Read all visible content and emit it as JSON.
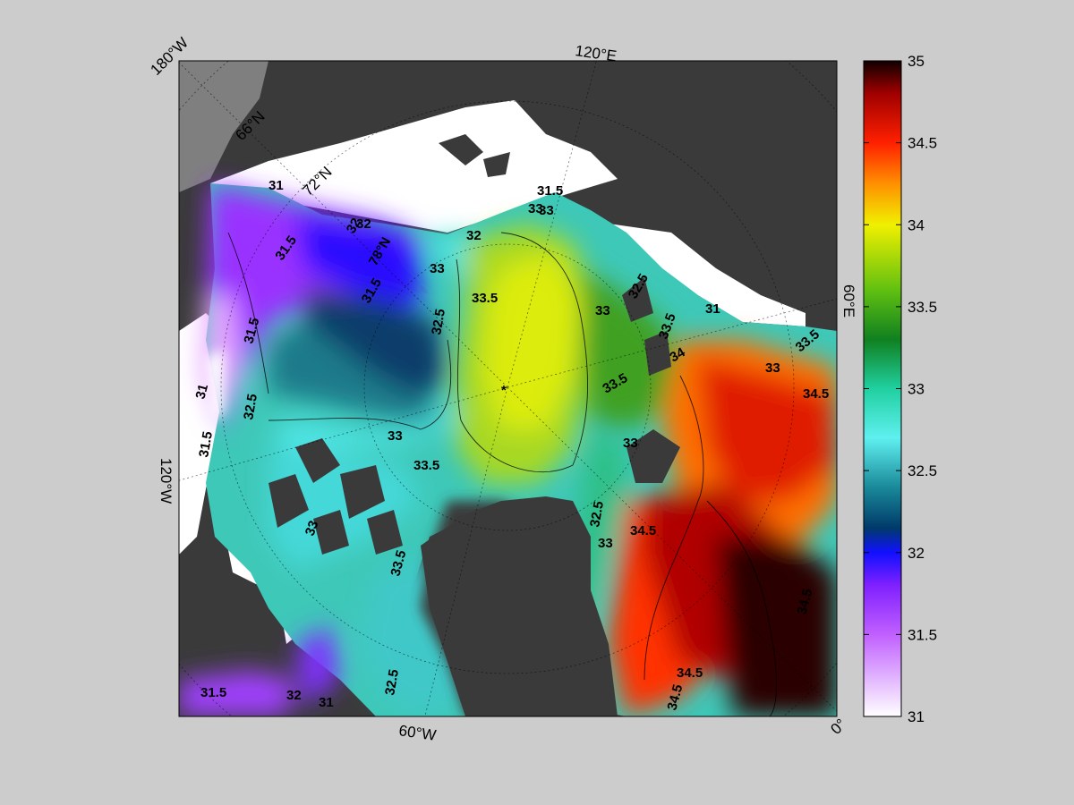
{
  "map": {
    "projection": "north-polar-stereographic",
    "corner_labels": [
      {
        "id": "top-left",
        "text": "180°W"
      },
      {
        "id": "top",
        "text": "120°E"
      },
      {
        "id": "right",
        "text": "60°E"
      },
      {
        "id": "left",
        "text": "120°W"
      },
      {
        "id": "bottom",
        "text": "60°W"
      },
      {
        "id": "bottom-right",
        "text": "0°"
      }
    ],
    "latitude_labels": [
      "66°N",
      "72°N",
      "78°N"
    ],
    "pole_marker": "*",
    "colors": {
      "background": "#cccccc",
      "land": "#3a3a3a",
      "land_light": "#7f7f7f",
      "no_data_ice": "#ffffff"
    }
  },
  "contour_labels": [
    "31",
    "31.5",
    "32",
    "78°N",
    "32",
    "33",
    "32",
    "31.5",
    "33",
    "32.5",
    "33.5",
    "33",
    "32.5",
    "31.5",
    "31",
    "33.5",
    "34",
    "33.5",
    "31",
    "31.5",
    "32.5",
    "31.5",
    "33",
    "33.5",
    "33",
    "33.5",
    "34.5",
    "33",
    "34.5",
    "33",
    "33.5",
    "33",
    "32.5",
    "34.5",
    "34.5",
    "34.5",
    "32",
    "31",
    "31.5",
    "32.5",
    "33"
  ],
  "colorbar": {
    "min": 31,
    "max": 35,
    "ticks": [
      "35",
      "34.5",
      "34",
      "33.5",
      "33",
      "32.5",
      "32",
      "31.5",
      "31"
    ],
    "colormap": [
      {
        "value": 31.0,
        "color": "#ffffff"
      },
      {
        "value": 31.5,
        "color": "#c060ff"
      },
      {
        "value": 31.8,
        "color": "#8020ff"
      },
      {
        "value": 32.0,
        "color": "#1010ff"
      },
      {
        "value": 32.15,
        "color": "#003a6a"
      },
      {
        "value": 32.4,
        "color": "#1a8a9a"
      },
      {
        "value": 32.7,
        "color": "#5ff0f0"
      },
      {
        "value": 33.0,
        "color": "#20d0a0"
      },
      {
        "value": 33.3,
        "color": "#108020"
      },
      {
        "value": 33.6,
        "color": "#60c010"
      },
      {
        "value": 34.0,
        "color": "#f0f000"
      },
      {
        "value": 34.25,
        "color": "#ff9000"
      },
      {
        "value": 34.5,
        "color": "#ff2000"
      },
      {
        "value": 34.8,
        "color": "#a00000"
      },
      {
        "value": 35.0,
        "color": "#100000"
      }
    ]
  }
}
